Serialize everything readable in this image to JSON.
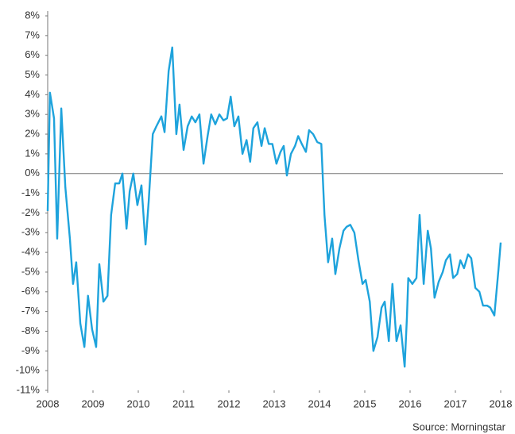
{
  "chart_data": {
    "type": "line",
    "source": "Source: Morningstar",
    "x": [
      2008.0,
      2008.05,
      2008.14,
      2008.21,
      2008.3,
      2008.39,
      2008.49,
      2008.56,
      2008.63,
      2008.72,
      2008.81,
      2008.89,
      2008.98,
      2009.07,
      2009.14,
      2009.23,
      2009.32,
      2009.4,
      2009.49,
      2009.58,
      2009.65,
      2009.74,
      2009.81,
      2009.89,
      2009.98,
      2010.07,
      2010.16,
      2010.23,
      2010.32,
      2010.4,
      2010.51,
      2010.58,
      2010.67,
      2010.75,
      2010.84,
      2010.91,
      2011.0,
      2011.09,
      2011.18,
      2011.26,
      2011.35,
      2011.44,
      2011.53,
      2011.61,
      2011.7,
      2011.79,
      2011.88,
      2011.96,
      2012.04,
      2012.12,
      2012.21,
      2012.3,
      2012.39,
      2012.47,
      2012.54,
      2012.63,
      2012.72,
      2012.79,
      2012.88,
      2012.96,
      2013.05,
      2013.14,
      2013.21,
      2013.28,
      2013.37,
      2013.46,
      2013.53,
      2013.61,
      2013.7,
      2013.77,
      2013.86,
      2013.95,
      2014.04,
      2014.11,
      2014.19,
      2014.28,
      2014.35,
      2014.44,
      2014.53,
      2014.6,
      2014.68,
      2014.77,
      2014.86,
      2014.95,
      2015.02,
      2015.11,
      2015.19,
      2015.28,
      2015.37,
      2015.44,
      2015.53,
      2015.61,
      2015.7,
      2015.79,
      2015.88,
      2015.93,
      2015.96,
      2016.05,
      2016.14,
      2016.21,
      2016.3,
      2016.39,
      2016.46,
      2016.54,
      2016.63,
      2016.72,
      2016.79,
      2016.88,
      2016.95,
      2017.04,
      2017.11,
      2017.19,
      2017.28,
      2017.35,
      2017.44,
      2017.53,
      2017.61,
      2017.7,
      2017.77,
      2017.86,
      2017.95,
      2018.0
    ],
    "series": [
      {
        "color": "#1ea3dc",
        "values": [
          -1.9,
          4.1,
          2.8,
          -3.3,
          3.3,
          -0.7,
          -3.3,
          -5.6,
          -4.5,
          -7.6,
          -8.8,
          -6.2,
          -7.9,
          -8.8,
          -4.6,
          -6.5,
          -6.2,
          -2.1,
          -0.5,
          -0.5,
          0.0,
          -2.8,
          -0.9,
          0.0,
          -1.6,
          -0.6,
          -3.6,
          -1.4,
          2.0,
          2.4,
          2.9,
          2.1,
          5.2,
          6.4,
          2.0,
          3.5,
          1.2,
          2.4,
          2.9,
          2.6,
          3.0,
          0.5,
          1.9,
          3.0,
          2.5,
          3.0,
          2.7,
          2.8,
          3.9,
          2.4,
          2.9,
          1.0,
          1.7,
          0.6,
          2.3,
          2.6,
          1.4,
          2.3,
          1.5,
          1.5,
          0.5,
          1.1,
          1.4,
          -0.1,
          1.0,
          1.4,
          1.9,
          1.5,
          1.1,
          2.2,
          2.0,
          1.6,
          1.5,
          -2.1,
          -4.5,
          -3.3,
          -5.1,
          -3.8,
          -2.9,
          -2.7,
          -2.6,
          -3.0,
          -4.4,
          -5.6,
          -5.4,
          -6.5,
          -9.0,
          -8.3,
          -6.8,
          -6.5,
          -8.5,
          -5.6,
          -8.5,
          -7.7,
          -9.8,
          -7.3,
          -5.3,
          -5.6,
          -5.3,
          -2.1,
          -5.6,
          -2.9,
          -3.8,
          -6.3,
          -5.5,
          -5.0,
          -4.4,
          -4.1,
          -5.3,
          -5.1,
          -4.4,
          -4.8,
          -4.1,
          -4.3,
          -5.8,
          -6.0,
          -6.7,
          -6.7,
          -6.8,
          -7.2,
          -4.9,
          -3.5
        ]
      }
    ],
    "reference_line": 0,
    "xlim": [
      2008,
      2018
    ],
    "xticks": [
      2008,
      2009,
      2010,
      2011,
      2012,
      2013,
      2014,
      2015,
      2016,
      2017,
      2018
    ],
    "ylim": [
      -11,
      8
    ],
    "yticks": [
      {
        "value": -11,
        "label": "-11%"
      },
      {
        "value": -10,
        "label": "-10%"
      },
      {
        "value": -9,
        "label": "-9%"
      },
      {
        "value": -8,
        "label": "-8%"
      },
      {
        "value": -7,
        "label": "-7%"
      },
      {
        "value": -6,
        "label": "-6%"
      },
      {
        "value": -5,
        "label": "-5%"
      },
      {
        "value": -4,
        "label": "-4%"
      },
      {
        "value": -3,
        "label": "-3%"
      },
      {
        "value": -2,
        "label": "-2%"
      },
      {
        "value": -1,
        "label": "-1%"
      },
      {
        "value": 0,
        "label": "0%"
      },
      {
        "value": 1,
        "label": "1%"
      },
      {
        "value": 2,
        "label": "2%"
      },
      {
        "value": 3,
        "label": "3%"
      },
      {
        "value": 4,
        "label": "4%"
      },
      {
        "value": 5,
        "label": "5%"
      },
      {
        "value": 6,
        "label": "6%"
      },
      {
        "value": 7,
        "label": "7%"
      },
      {
        "value": 8,
        "label": "8%"
      }
    ]
  }
}
